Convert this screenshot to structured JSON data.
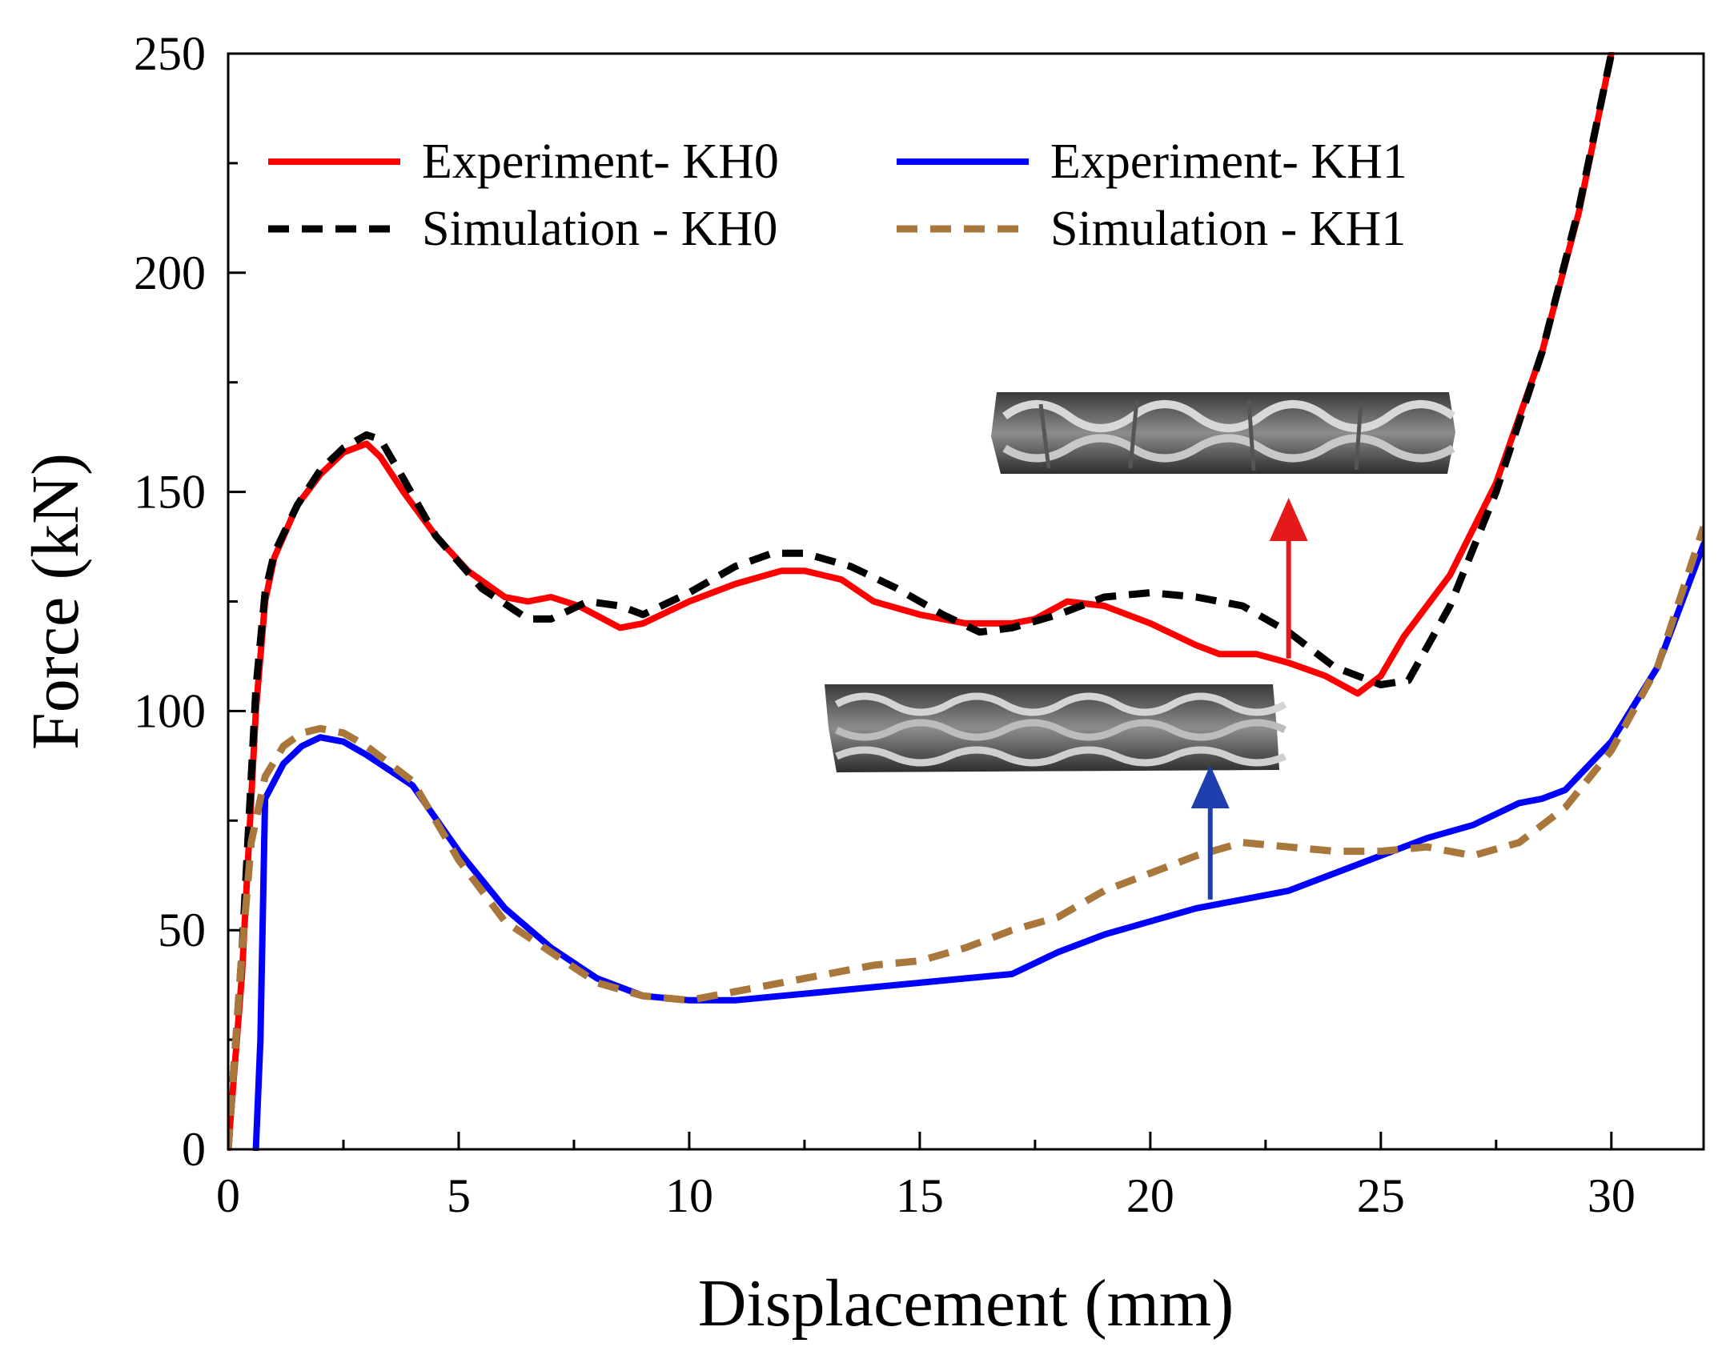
{
  "chart_data": {
    "type": "line",
    "xlabel": "Displacement (mm)",
    "ylabel": "Force (kN)",
    "xlim": [
      0,
      32
    ],
    "ylim": [
      0,
      250
    ],
    "xticks": [
      0,
      5,
      10,
      15,
      20,
      25,
      30
    ],
    "yticks": [
      0,
      50,
      100,
      150,
      200,
      250
    ],
    "grid": false,
    "legend_position": "top-left",
    "series": [
      {
        "name": "Experiment- KH0",
        "color": "#ff0000",
        "style": "solid",
        "points": [
          [
            0,
            0
          ],
          [
            0.3,
            40
          ],
          [
            0.6,
            100
          ],
          [
            0.8,
            125
          ],
          [
            1.0,
            135
          ],
          [
            1.5,
            147
          ],
          [
            2.0,
            154
          ],
          [
            2.5,
            159
          ],
          [
            3.0,
            161
          ],
          [
            3.3,
            158
          ],
          [
            3.8,
            150
          ],
          [
            4.5,
            140
          ],
          [
            5.2,
            132
          ],
          [
            6.0,
            126
          ],
          [
            6.5,
            125
          ],
          [
            7.0,
            126
          ],
          [
            7.6,
            124
          ],
          [
            8.5,
            119
          ],
          [
            9.0,
            120
          ],
          [
            10.0,
            125
          ],
          [
            11.0,
            129
          ],
          [
            12.0,
            132
          ],
          [
            12.5,
            132
          ],
          [
            13.3,
            130
          ],
          [
            14.0,
            125
          ],
          [
            15.0,
            122
          ],
          [
            16.0,
            120
          ],
          [
            17.0,
            120
          ],
          [
            17.5,
            121
          ],
          [
            18.2,
            125
          ],
          [
            19.0,
            124
          ],
          [
            20.0,
            120
          ],
          [
            21.0,
            115
          ],
          [
            21.5,
            113
          ],
          [
            22.3,
            113
          ],
          [
            23.0,
            111
          ],
          [
            23.8,
            108
          ],
          [
            24.5,
            104
          ],
          [
            25.0,
            108
          ],
          [
            25.5,
            117
          ],
          [
            26.5,
            131
          ],
          [
            27.5,
            152
          ],
          [
            28.5,
            182
          ],
          [
            29.3,
            214
          ],
          [
            30.0,
            250
          ]
        ]
      },
      {
        "name": "Experiment- KH1",
        "color": "#0000ff",
        "style": "solid",
        "points": [
          [
            0.6,
            0
          ],
          [
            0.7,
            25
          ],
          [
            0.8,
            80
          ],
          [
            1.2,
            88
          ],
          [
            1.6,
            92
          ],
          [
            2.0,
            94
          ],
          [
            2.5,
            93
          ],
          [
            3.0,
            90
          ],
          [
            4.0,
            83
          ],
          [
            5.0,
            68
          ],
          [
            6.0,
            55
          ],
          [
            7.0,
            46
          ],
          [
            8.0,
            39
          ],
          [
            9.0,
            35
          ],
          [
            10.0,
            34
          ],
          [
            11.0,
            34
          ],
          [
            12.0,
            35
          ],
          [
            13.0,
            36
          ],
          [
            14.0,
            37
          ],
          [
            15.0,
            38
          ],
          [
            16.0,
            39
          ],
          [
            17.0,
            40
          ],
          [
            18.0,
            45
          ],
          [
            19.0,
            49
          ],
          [
            20.0,
            52
          ],
          [
            21.0,
            55
          ],
          [
            22.0,
            57
          ],
          [
            23.0,
            59
          ],
          [
            24.0,
            63
          ],
          [
            25.0,
            67
          ],
          [
            26.0,
            71
          ],
          [
            27.0,
            74
          ],
          [
            28.0,
            79
          ],
          [
            28.5,
            80
          ],
          [
            29.0,
            82
          ],
          [
            30.0,
            93
          ],
          [
            31.0,
            110
          ],
          [
            32.0,
            138
          ]
        ]
      },
      {
        "name": "Simulation - KH0",
        "color": "#000000",
        "style": "dashed",
        "points": [
          [
            0,
            0
          ],
          [
            0.3,
            45
          ],
          [
            0.6,
            105
          ],
          [
            0.8,
            127
          ],
          [
            1.0,
            136
          ],
          [
            1.5,
            147
          ],
          [
            2.0,
            155
          ],
          [
            2.5,
            160
          ],
          [
            3.0,
            163
          ],
          [
            3.3,
            162
          ],
          [
            3.8,
            153
          ],
          [
            4.5,
            140
          ],
          [
            5.5,
            128
          ],
          [
            6.5,
            121
          ],
          [
            7.0,
            121
          ],
          [
            7.8,
            125
          ],
          [
            8.5,
            124
          ],
          [
            9.0,
            122
          ],
          [
            10.0,
            127
          ],
          [
            11.0,
            133
          ],
          [
            11.8,
            136
          ],
          [
            12.5,
            136
          ],
          [
            13.5,
            133
          ],
          [
            14.5,
            128
          ],
          [
            15.5,
            122
          ],
          [
            16.3,
            118
          ],
          [
            17.0,
            119
          ],
          [
            18.0,
            122
          ],
          [
            19.0,
            126
          ],
          [
            20.0,
            127
          ],
          [
            21.0,
            126
          ],
          [
            22.0,
            124
          ],
          [
            23.0,
            118
          ],
          [
            24.0,
            110
          ],
          [
            25.0,
            106
          ],
          [
            25.6,
            107
          ],
          [
            26.5,
            124
          ],
          [
            27.5,
            150
          ],
          [
            28.5,
            182
          ],
          [
            29.3,
            215
          ],
          [
            30.0,
            250
          ]
        ]
      },
      {
        "name": "Simulation - KH1",
        "color": "#a9773c",
        "style": "dashed",
        "points": [
          [
            0,
            0
          ],
          [
            0.3,
            45
          ],
          [
            0.5,
            70
          ],
          [
            0.8,
            85
          ],
          [
            1.2,
            92
          ],
          [
            1.6,
            95
          ],
          [
            2.0,
            96
          ],
          [
            2.5,
            95
          ],
          [
            3.0,
            92
          ],
          [
            4.0,
            84
          ],
          [
            5.0,
            66
          ],
          [
            6.0,
            52
          ],
          [
            7.0,
            45
          ],
          [
            8.0,
            38
          ],
          [
            9.0,
            35
          ],
          [
            10.0,
            34
          ],
          [
            11.0,
            36
          ],
          [
            12.0,
            38
          ],
          [
            13.0,
            40
          ],
          [
            14.0,
            42
          ],
          [
            15.0,
            43
          ],
          [
            16.0,
            46
          ],
          [
            17.0,
            50
          ],
          [
            18.0,
            53
          ],
          [
            19.0,
            59
          ],
          [
            20.0,
            63
          ],
          [
            21.0,
            67
          ],
          [
            22.0,
            70
          ],
          [
            23.0,
            69
          ],
          [
            24.0,
            68
          ],
          [
            25.0,
            68
          ],
          [
            26.0,
            69
          ],
          [
            27.0,
            67
          ],
          [
            28.0,
            70
          ],
          [
            29.0,
            78
          ],
          [
            30.0,
            91
          ],
          [
            31.0,
            110
          ],
          [
            32.0,
            142
          ]
        ]
      }
    ],
    "insets": [
      {
        "name": "KH0 crushed specimen",
        "attached_series": "Experiment- KH0",
        "arrow_x": 23.0,
        "arrow_from_y": 112,
        "arrow_to_y": 145,
        "arrow_color": "#e41a1a"
      },
      {
        "name": "KH1 crushed specimen",
        "attached_series": "Experiment- KH1",
        "arrow_x": 21.3,
        "arrow_from_y": 57,
        "arrow_to_y": 84,
        "arrow_color": "#1f3fae"
      }
    ]
  }
}
